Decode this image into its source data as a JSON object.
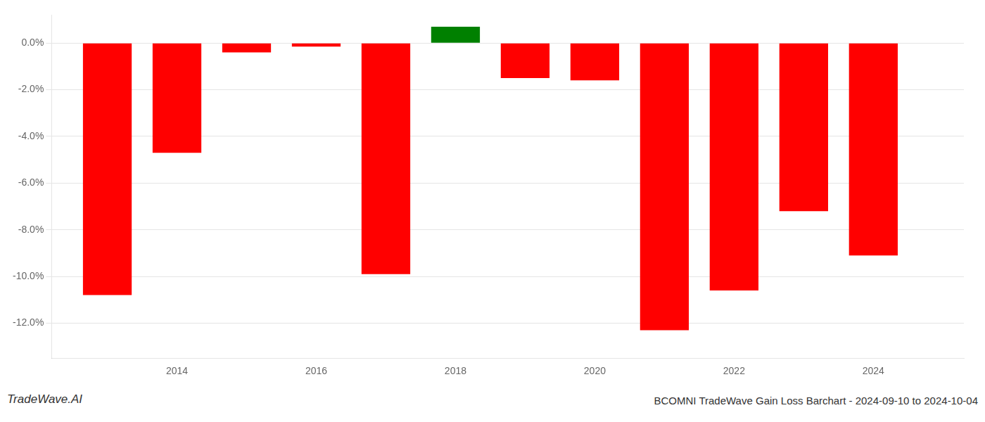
{
  "chart_data": {
    "type": "bar",
    "title": "BCOMNI TradeWave Gain Loss Barchart - 2024-09-10 to 2024-10-04",
    "annotations": [
      "TradeWave.AI"
    ],
    "x": [
      2013,
      2014,
      2015,
      2016,
      2017,
      2018,
      2019,
      2020,
      2021,
      2022,
      2023,
      2024
    ],
    "values": [
      -0.108,
      -0.047,
      -0.004,
      -0.0015,
      -0.099,
      0.007,
      -0.015,
      -0.016,
      -0.123,
      -0.106,
      -0.072,
      -0.091
    ],
    "colors": [
      "#ff0000",
      "#ff0000",
      "#ff0000",
      "#ff0000",
      "#ff0000",
      "#008000",
      "#ff0000",
      "#ff0000",
      "#ff0000",
      "#ff0000",
      "#ff0000",
      "#ff0000"
    ],
    "xlim": [
      2012.2,
      2025.3
    ],
    "xticks": [
      2014,
      2016,
      2018,
      2020,
      2022,
      2024
    ],
    "ylim": [
      -0.135,
      0.012
    ],
    "yticks": [
      {
        "value": -0.12,
        "label": "-12.0%"
      },
      {
        "value": -0.1,
        "label": "-10.0%"
      },
      {
        "value": -0.08,
        "label": "-8.0%"
      },
      {
        "value": -0.06,
        "label": "-6.0%"
      },
      {
        "value": -0.04,
        "label": "-4.0%"
      },
      {
        "value": -0.02,
        "label": "-2.0%"
      },
      {
        "value": 0,
        "label": "0.0%"
      }
    ],
    "grid": "y"
  }
}
